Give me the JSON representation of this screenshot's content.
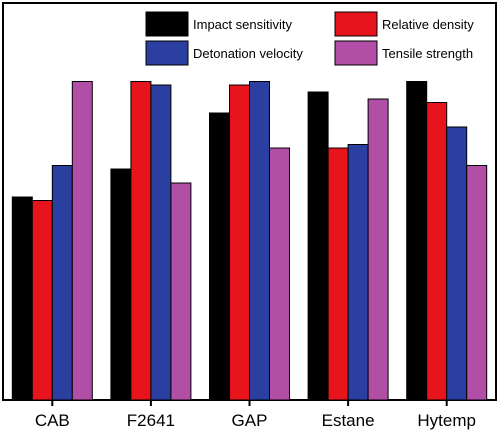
{
  "chart_data": {
    "type": "bar",
    "title": "",
    "xlabel": "",
    "ylabel": "",
    "categories": [
      "CAB",
      "F2641",
      "GAP",
      "Estane",
      "Hytemp"
    ],
    "series": [
      {
        "name": "Impact sensitivity",
        "color": "#000000",
        "values": [
          0.58,
          0.66,
          0.82,
          0.88,
          0.91
        ]
      },
      {
        "name": "Relative density",
        "color": "#e8141c",
        "values": [
          0.57,
          0.91,
          0.9,
          0.72,
          0.85
        ]
      },
      {
        "name": "Detonation velocity",
        "color": "#2b3fa0",
        "values": [
          0.67,
          0.9,
          0.91,
          0.73,
          0.78
        ]
      },
      {
        "name": "Tensile strength",
        "color": "#b14fa6",
        "values": [
          0.91,
          0.62,
          0.72,
          0.86,
          0.67
        ]
      }
    ],
    "ylim": [
      0,
      1
    ],
    "y_ticks_shown": false,
    "grid": false,
    "legend": "top, inside plot area"
  }
}
